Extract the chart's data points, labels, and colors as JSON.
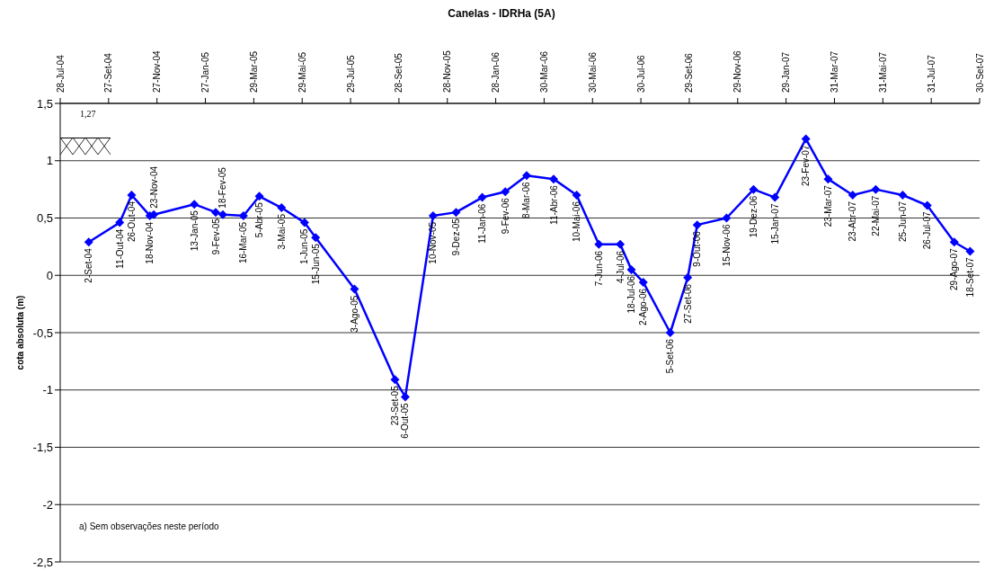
{
  "chart_data": {
    "type": "line",
    "title": "Canelas - IDRHa (5A)",
    "ylabel": "cota absoluta (m)",
    "x": [
      "2004-09-02",
      "2004-10-11",
      "2004-10-26",
      "2004-11-18",
      "2004-11-23",
      "2005-01-13",
      "2005-02-09",
      "2005-02-18",
      "2005-03-16",
      "2005-04-05",
      "2005-05-03",
      "2005-06-01",
      "2005-06-15",
      "2005-08-03",
      "2005-09-23",
      "2005-10-06",
      "2005-11-10",
      "2005-12-09",
      "2006-01-11",
      "2006-02-09",
      "2006-03-08",
      "2006-04-11",
      "2006-05-10",
      "2006-06-07",
      "2006-07-04",
      "2006-07-18",
      "2006-08-02",
      "2006-09-05",
      "2006-09-27",
      "2006-10-09",
      "2006-11-15",
      "2006-12-19",
      "2007-01-15",
      "2007-02-23",
      "2007-03-23",
      "2007-04-23",
      "2007-05-22",
      "2007-06-25",
      "2007-07-26",
      "2007-08-29",
      "2007-09-18"
    ],
    "series": [
      {
        "color": "#0000ff",
        "values": [
          0.29,
          0.46,
          0.7,
          0.52,
          0.53,
          0.62,
          0.55,
          0.53,
          0.52,
          0.69,
          0.59,
          0.46,
          0.33,
          -0.12,
          -0.91,
          -1.06,
          0.52,
          0.55,
          0.68,
          0.73,
          0.87,
          0.84,
          0.7,
          0.27,
          0.27,
          0.05,
          -0.06,
          -0.5,
          -0.02,
          0.44,
          0.5,
          0.75,
          0.68,
          1.19,
          0.84,
          0.7,
          0.75,
          0.7,
          0.61,
          0.29,
          0.21
        ]
      }
    ],
    "marker": "diamond",
    "line_style": "solid",
    "grid": "y",
    "xlim": [
      "2004-07-28",
      "2007-09-30"
    ],
    "xticks": [
      {
        "value": "2004-07-28",
        "label": "28-Jul-04"
      },
      {
        "value": "2004-09-27",
        "label": "27-Set-04"
      },
      {
        "value": "2004-11-27",
        "label": "27-Nov-04"
      },
      {
        "value": "2005-01-27",
        "label": "27-Jan-05"
      },
      {
        "value": "2005-03-29",
        "label": "29-Mar-05"
      },
      {
        "value": "2005-05-29",
        "label": "29-Mai-05"
      },
      {
        "value": "2005-07-29",
        "label": "29-Jul-05"
      },
      {
        "value": "2005-09-28",
        "label": "28-Set-05"
      },
      {
        "value": "2005-11-28",
        "label": "28-Nov-05"
      },
      {
        "value": "2006-01-28",
        "label": "28-Jan-06"
      },
      {
        "value": "2006-03-30",
        "label": "30-Mar-06"
      },
      {
        "value": "2006-05-30",
        "label": "30-Mai-06"
      },
      {
        "value": "2006-07-30",
        "label": "30-Jul-06"
      },
      {
        "value": "2006-09-29",
        "label": "29-Set-06"
      },
      {
        "value": "2006-11-29",
        "label": "29-Nov-06"
      },
      {
        "value": "2007-01-29",
        "label": "29-Jan-07"
      },
      {
        "value": "2007-03-31",
        "label": "31-Mar-07"
      },
      {
        "value": "2007-05-31",
        "label": "31-Mai-07"
      },
      {
        "value": "2007-07-31",
        "label": "31-Jul-07"
      },
      {
        "value": "2007-09-30",
        "label": "30-Set-07"
      }
    ],
    "ylim": [
      -2.5,
      1.5
    ],
    "yticks": [
      {
        "value": -2.5,
        "label": "-2,5"
      },
      -2,
      {
        "value": -1.5,
        "label": "-1,5"
      },
      -1,
      {
        "value": -0.5,
        "label": "-0,5"
      },
      0,
      {
        "value": 0.5,
        "label": "0,5"
      },
      1,
      {
        "value": 1.5,
        "label": "1,5"
      }
    ],
    "annotations": [
      "1,27",
      "a) Sem observações neste período",
      {
        "text": "2-Set-04",
        "x": "2004-09-02",
        "y": 0.29
      },
      {
        "text": "11-Out-04",
        "x": "2004-10-11",
        "y": 0.46
      },
      {
        "text": "26-Out-04",
        "x": "2004-10-26",
        "y": 0.7
      },
      {
        "text": "18-Nov-04",
        "x": "2004-11-18",
        "y": 0.52
      },
      {
        "text": "23-Nov-04",
        "x": "2004-11-23",
        "y": 0.53
      },
      {
        "text": "13-Jan-05",
        "x": "2005-01-13",
        "y": 0.62
      },
      {
        "text": "9-Fev-05",
        "x": "2005-02-09",
        "y": 0.55
      },
      {
        "text": "18-Fev-05",
        "x": "2005-02-18",
        "y": 0.53
      },
      {
        "text": "16-Mar-05",
        "x": "2005-03-16",
        "y": 0.52
      },
      {
        "text": "5-Abr-05",
        "x": "2005-04-05",
        "y": 0.69
      },
      {
        "text": "3-Mai-05",
        "x": "2005-05-03",
        "y": 0.59
      },
      {
        "text": "1-Jun-05",
        "x": "2005-06-01",
        "y": 0.46
      },
      {
        "text": "15-Jun-05",
        "x": "2005-06-15",
        "y": 0.33
      },
      {
        "text": "3-Ago-05",
        "x": "2005-08-03",
        "y": -0.12
      },
      {
        "text": "23-Set-05",
        "x": "2005-09-23",
        "y": -0.91
      },
      {
        "text": "6-Out-05",
        "x": "2005-10-06",
        "y": -1.06
      },
      {
        "text": "10-Nov-05",
        "x": "2005-11-10",
        "y": 0.52
      },
      {
        "text": "9-Dez-05",
        "x": "2005-12-09",
        "y": 0.55
      },
      {
        "text": "11-Jan-06",
        "x": "2006-01-11",
        "y": 0.68
      },
      {
        "text": "9-Fev-06",
        "x": "2006-02-09",
        "y": 0.73
      },
      {
        "text": "8-Mar-06",
        "x": "2006-03-08",
        "y": 0.87
      },
      {
        "text": "11-Abr-06",
        "x": "2006-04-11",
        "y": 0.84
      },
      {
        "text": "10-Mai-06",
        "x": "2006-05-10",
        "y": 0.7
      },
      {
        "text": "7-Jun-06",
        "x": "2006-06-07",
        "y": 0.27
      },
      {
        "text": "4-Jul-06",
        "x": "2006-07-04",
        "y": 0.27
      },
      {
        "text": "18-Jul-06",
        "x": "2006-07-18",
        "y": 0.05
      },
      {
        "text": "2-Ago-06",
        "x": "2006-08-02",
        "y": -0.06
      },
      {
        "text": "5-Set-06",
        "x": "2006-09-05",
        "y": -0.5
      },
      {
        "text": "27-Set-06",
        "x": "2006-09-27",
        "y": -0.02
      },
      {
        "text": "9-Out-06",
        "x": "2006-10-09",
        "y": 0.44
      },
      {
        "text": "15-Nov-06",
        "x": "2006-11-15",
        "y": 0.5
      },
      {
        "text": "19-Dez-06",
        "x": "2006-12-19",
        "y": 0.75
      },
      {
        "text": "15-Jan-07",
        "x": "2007-01-15",
        "y": 0.68
      },
      {
        "text": "23-Fev-07",
        "x": "2007-02-23",
        "y": 1.19
      },
      {
        "text": "23-Mar-07",
        "x": "2007-03-23",
        "y": 0.84
      },
      {
        "text": "23-Abr-07",
        "x": "2007-04-23",
        "y": 0.7
      },
      {
        "text": "22-Mai-07",
        "x": "2007-05-22",
        "y": 0.75
      },
      {
        "text": "25-Jun-07",
        "x": "2007-06-25",
        "y": 0.7
      },
      {
        "text": "26-Jul-07",
        "x": "2007-07-26",
        "y": 0.61
      },
      {
        "text": "29-Ago-07",
        "x": "2007-08-29",
        "y": 0.29
      },
      {
        "text": "18-Set-07",
        "x": "2007-09-18",
        "y": 0.21
      }
    ]
  }
}
